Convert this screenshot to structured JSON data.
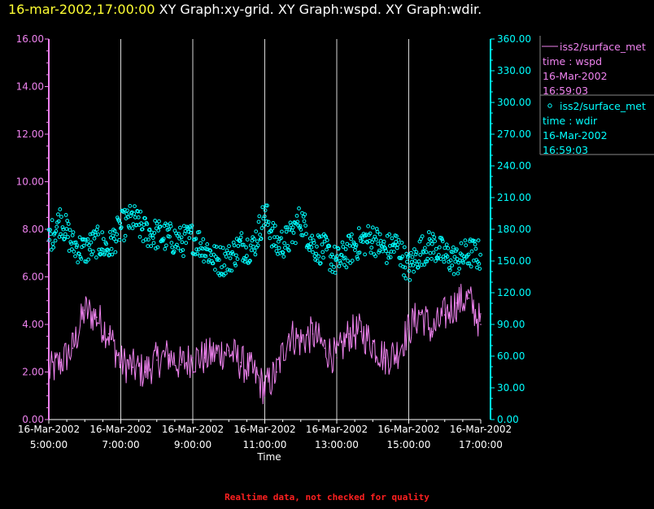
{
  "header": {
    "time": "16-mar-2002,17:00:00",
    "graphs": [
      "XY Graph:xy-grid.",
      "XY Graph:wspd.",
      "XY Graph:wdir."
    ]
  },
  "footer": {
    "note": "Realtime data, not checked for quality"
  },
  "colors": {
    "wspd": "#ee82ee",
    "wdir": "#00ffff",
    "grid": "#ffffff",
    "x_axis": "#ffffff",
    "background": "#000000"
  },
  "legend": [
    {
      "marker": "line",
      "color": "#ee82ee",
      "lines": [
        "iss2/surface_met",
        "time : wspd",
        "16-Mar-2002",
        "16:59:03"
      ]
    },
    {
      "marker": "circle",
      "color": "#00ffff",
      "lines": [
        "iss2/surface_met",
        "time : wdir",
        "16-Mar-2002",
        "16:59:03"
      ]
    }
  ],
  "chart_data": {
    "type": "line",
    "xlabel": "Time",
    "x_range": [
      "16-Mar-2002 05:00:00",
      "16-Mar-2002 17:00:00"
    ],
    "x_ticks": [
      {
        "date": "16-Mar-2002",
        "time": "5:00:00"
      },
      {
        "date": "16-Mar-2002",
        "time": "7:00:00"
      },
      {
        "date": "16-Mar-2002",
        "time": "9:00:00"
      },
      {
        "date": "16-Mar-2002",
        "time": "11:00:00"
      },
      {
        "date": "16-Mar-2002",
        "time": "13:00:00"
      },
      {
        "date": "16-Mar-2002",
        "time": "15:00:00"
      },
      {
        "date": "16-Mar-2002",
        "time": "17:00:00"
      }
    ],
    "y_left": {
      "range": [
        0,
        16
      ],
      "ticks": [
        "0.00",
        "2.00",
        "4.00",
        "6.00",
        "8.00",
        "10.00",
        "12.00",
        "14.00",
        "16.00"
      ]
    },
    "y_right": {
      "range": [
        0,
        360
      ],
      "ticks": [
        "0.00",
        "30.00",
        "60.00",
        "90.00",
        "120.00",
        "150.00",
        "180.00",
        "210.00",
        "240.00",
        "270.00",
        "300.00",
        "330.00",
        "360.00"
      ]
    },
    "grid": true,
    "series": [
      {
        "name": "iss2/surface_met time : wspd",
        "axis": "left",
        "style": "line",
        "color": "#ee82ee",
        "x": [
          "05:00",
          "05:20",
          "05:40",
          "06:00",
          "06:20",
          "06:40",
          "07:00",
          "07:20",
          "07:40",
          "08:00",
          "08:20",
          "08:40",
          "09:00",
          "09:20",
          "09:40",
          "10:00",
          "10:20",
          "10:40",
          "11:00",
          "11:20",
          "11:40",
          "12:00",
          "12:20",
          "12:40",
          "13:00",
          "13:20",
          "13:40",
          "14:00",
          "14:20",
          "14:40",
          "15:00",
          "15:20",
          "15:40",
          "16:00",
          "16:20",
          "16:40",
          "17:00"
        ],
        "values": [
          2.0,
          2.4,
          3.0,
          4.6,
          4.3,
          3.6,
          2.4,
          2.2,
          2.0,
          2.5,
          2.7,
          2.3,
          2.6,
          2.6,
          2.8,
          2.9,
          2.4,
          2.0,
          1.3,
          2.0,
          3.6,
          3.3,
          3.6,
          3.0,
          2.6,
          3.6,
          3.7,
          3.2,
          2.6,
          2.8,
          3.8,
          4.5,
          3.7,
          4.4,
          4.9,
          5.1,
          4.0
        ]
      },
      {
        "name": "iss2/surface_met time : wdir",
        "axis": "right",
        "style": "points",
        "color": "#00ffff",
        "x": [
          "05:00",
          "05:20",
          "05:40",
          "06:00",
          "06:20",
          "06:40",
          "07:00",
          "07:20",
          "07:40",
          "08:00",
          "08:20",
          "08:40",
          "09:00",
          "09:20",
          "09:40",
          "10:00",
          "10:20",
          "10:40",
          "11:00",
          "11:20",
          "11:40",
          "12:00",
          "12:20",
          "12:40",
          "13:00",
          "13:20",
          "13:40",
          "14:00",
          "14:20",
          "14:40",
          "15:00",
          "15:20",
          "15:40",
          "16:00",
          "16:20",
          "16:40",
          "17:00"
        ],
        "values": [
          170,
          190,
          165,
          160,
          168,
          162,
          182,
          190,
          178,
          175,
          172,
          168,
          172,
          163,
          150,
          152,
          165,
          162,
          195,
          165,
          170,
          190,
          165,
          160,
          148,
          160,
          168,
          172,
          160,
          165,
          142,
          160,
          165,
          155,
          150,
          158,
          155
        ]
      }
    ]
  }
}
